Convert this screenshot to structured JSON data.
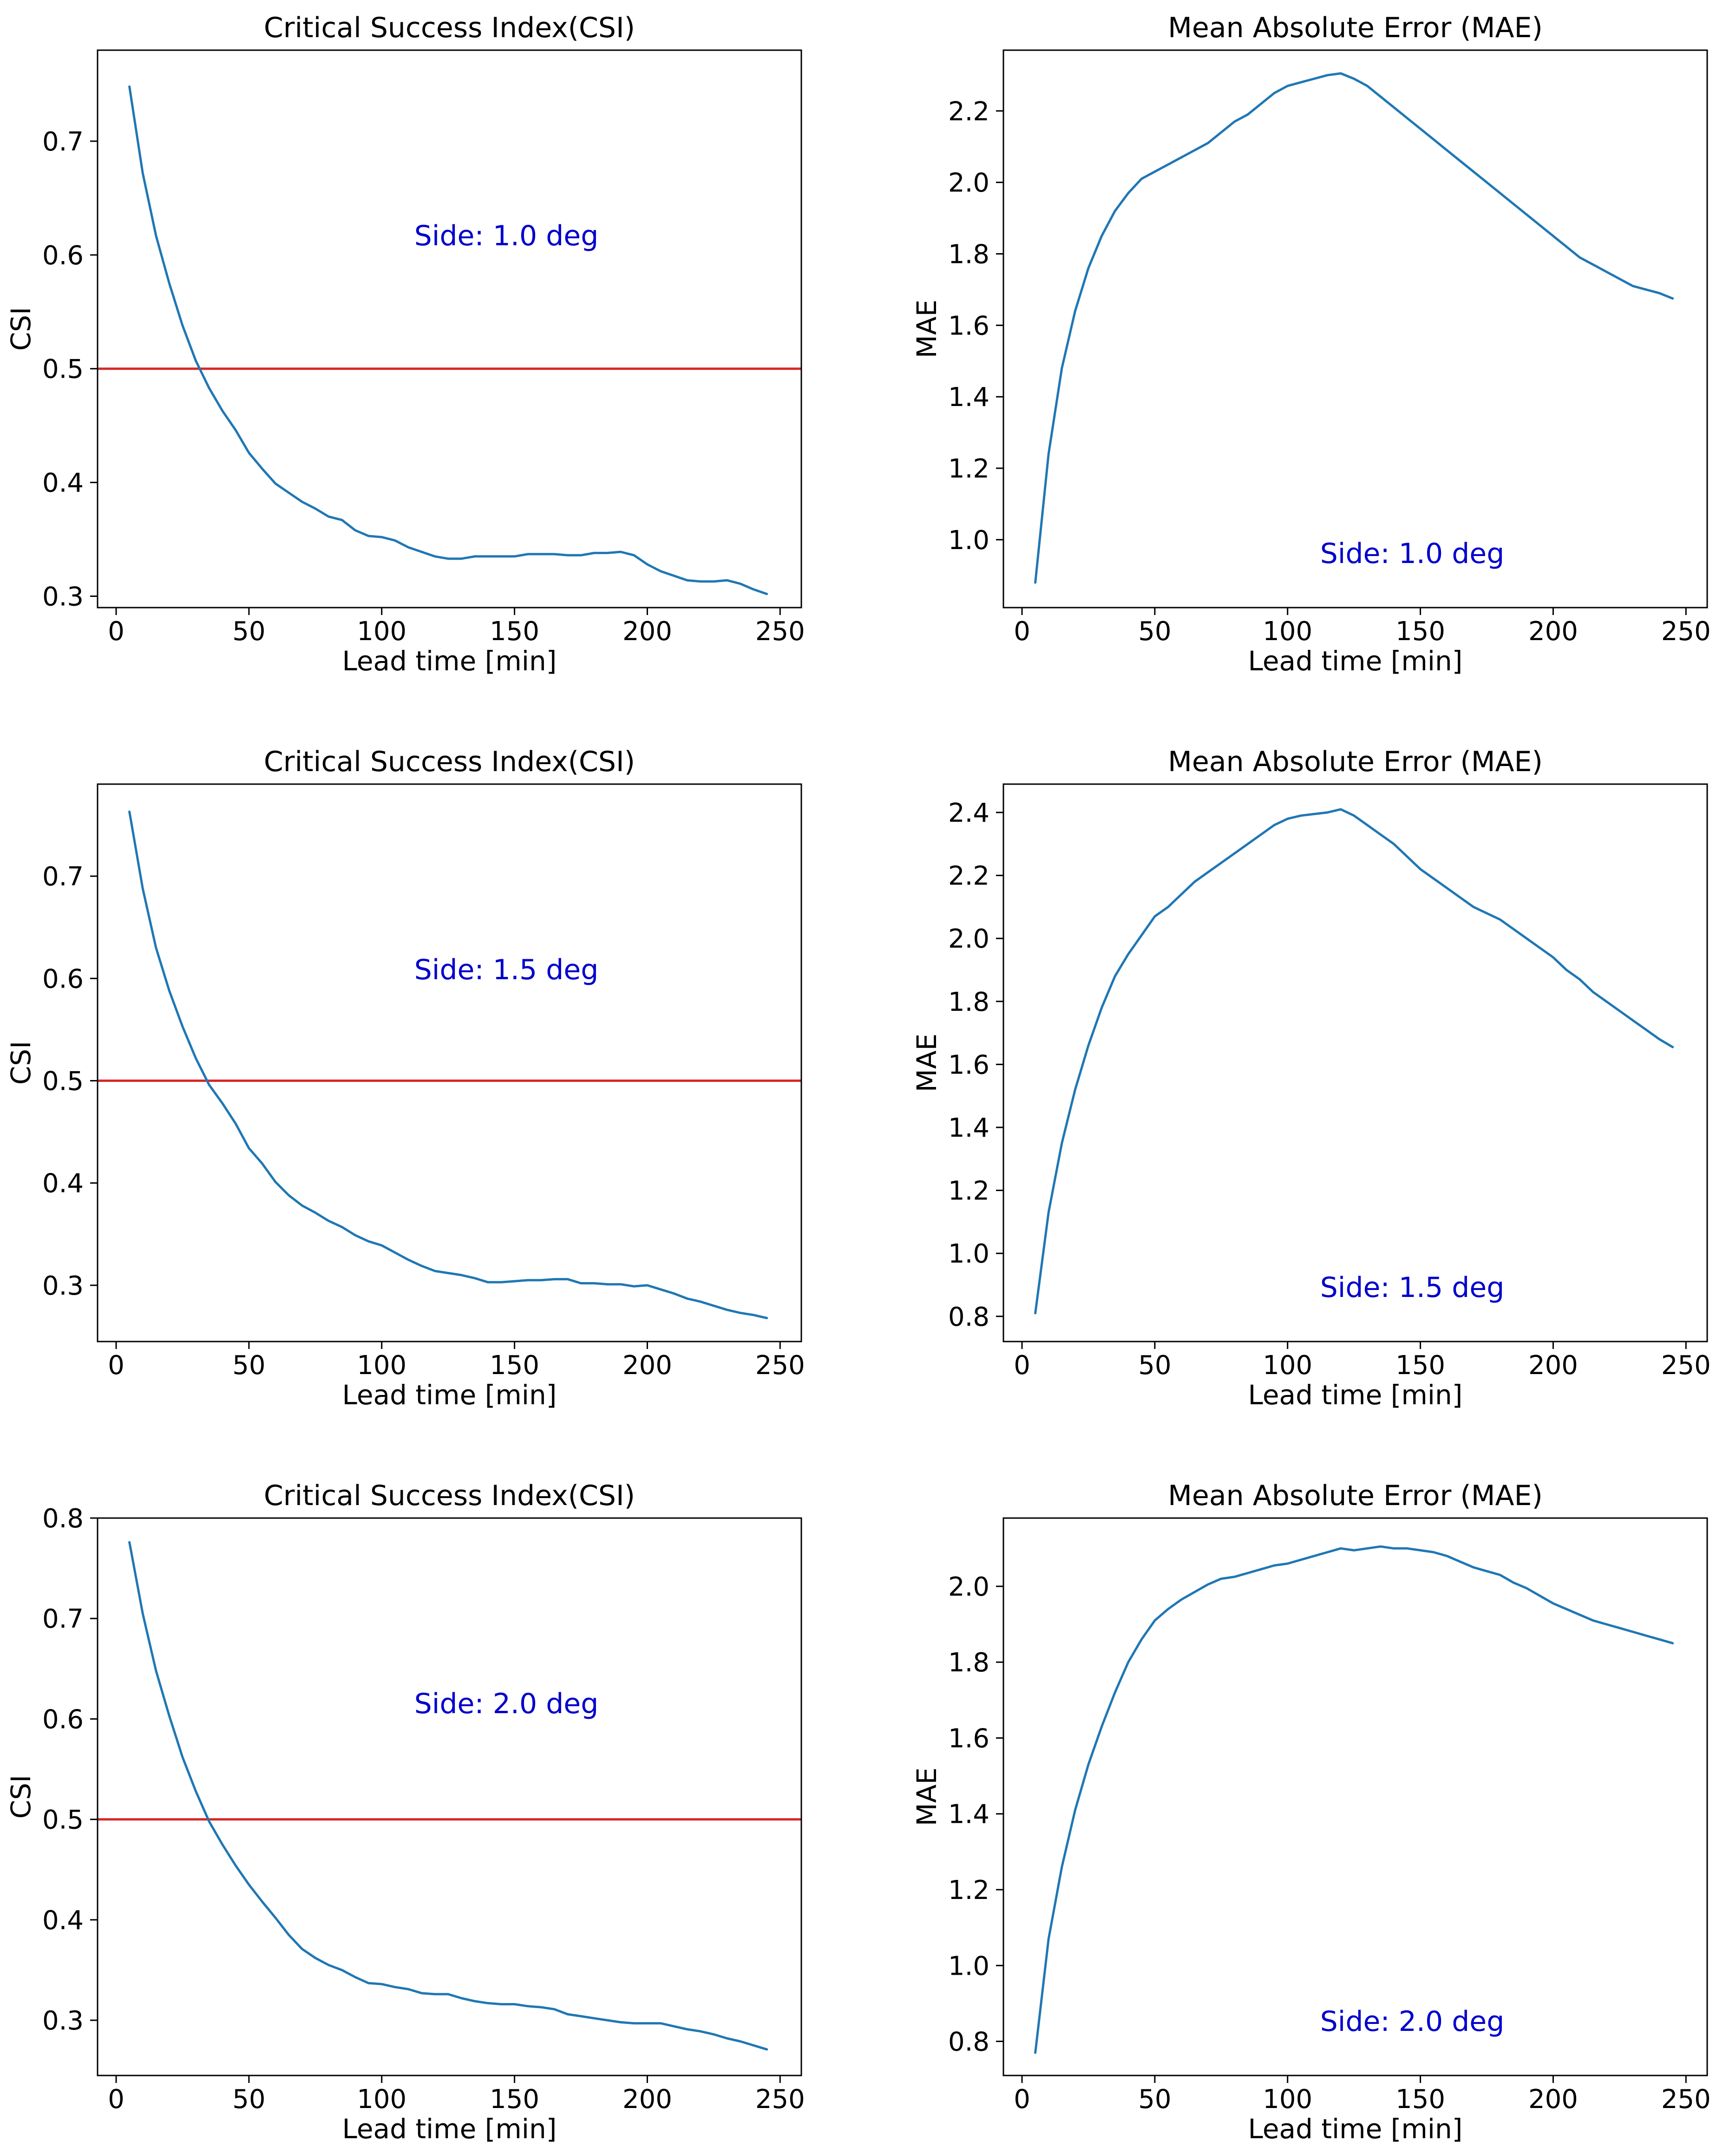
{
  "colors": {
    "series": "#1f77b4",
    "threshold": "#d62728",
    "annotation": "#0000cc"
  },
  "chart_data": [
    {
      "id": "csi-1",
      "type": "line",
      "title": "Critical Success Index(CSI)",
      "xlabel": "Lead time [min]",
      "ylabel": "CSI",
      "annotation": "Side: 1.0 deg",
      "xlim": [
        -7,
        258
      ],
      "ylim": [
        0.29,
        0.78
      ],
      "xticks": [
        0,
        50,
        100,
        150,
        200,
        250
      ],
      "xtick_labels": [
        "0",
        "50",
        "100",
        "150",
        "200",
        "250"
      ],
      "yticks": [
        0.3,
        0.4,
        0.5,
        0.6,
        0.7
      ],
      "ytick_labels": [
        "0.3",
        "0.4",
        "0.5",
        "0.6",
        "0.7"
      ],
      "threshold": 0.5,
      "x": [
        5,
        10,
        15,
        20,
        25,
        30,
        35,
        40,
        45,
        50,
        55,
        60,
        65,
        70,
        75,
        80,
        85,
        90,
        95,
        100,
        105,
        110,
        115,
        120,
        125,
        130,
        135,
        140,
        145,
        150,
        155,
        160,
        165,
        170,
        175,
        180,
        185,
        190,
        195,
        200,
        205,
        210,
        215,
        220,
        225,
        230,
        235,
        240,
        245
      ],
      "y": [
        0.748,
        0.672,
        0.617,
        0.575,
        0.538,
        0.507,
        0.483,
        0.463,
        0.446,
        0.426,
        0.412,
        0.399,
        0.391,
        0.383,
        0.377,
        0.37,
        0.367,
        0.358,
        0.353,
        0.352,
        0.349,
        0.343,
        0.339,
        0.335,
        0.333,
        0.333,
        0.335,
        0.335,
        0.335,
        0.335,
        0.337,
        0.337,
        0.337,
        0.336,
        0.336,
        0.338,
        0.338,
        0.339,
        0.336,
        0.328,
        0.322,
        0.318,
        0.314,
        0.313,
        0.313,
        0.314,
        0.311,
        0.306,
        0.302
      ]
    },
    {
      "id": "mae-1",
      "type": "line",
      "title": "Mean Absolute Error (MAE)",
      "xlabel": "Lead time [min]",
      "ylabel": "MAE",
      "annotation": "Side: 1.0 deg",
      "xlim": [
        -7,
        258
      ],
      "ylim": [
        0.81,
        2.37
      ],
      "xticks": [
        0,
        50,
        100,
        150,
        200,
        250
      ],
      "xtick_labels": [
        "0",
        "50",
        "100",
        "150",
        "200",
        "250"
      ],
      "yticks": [
        1.0,
        1.2,
        1.4,
        1.6,
        1.8,
        2.0,
        2.2
      ],
      "ytick_labels": [
        "1.0",
        "1.2",
        "1.4",
        "1.6",
        "1.8",
        "2.0",
        "2.2"
      ],
      "x": [
        5,
        10,
        15,
        20,
        25,
        30,
        35,
        40,
        45,
        50,
        55,
        60,
        65,
        70,
        75,
        80,
        85,
        90,
        95,
        100,
        105,
        110,
        115,
        120,
        125,
        130,
        135,
        140,
        145,
        150,
        155,
        160,
        165,
        170,
        175,
        180,
        185,
        190,
        195,
        200,
        205,
        210,
        215,
        220,
        225,
        230,
        235,
        240,
        245
      ],
      "y": [
        0.88,
        1.24,
        1.48,
        1.64,
        1.76,
        1.85,
        1.92,
        1.97,
        2.01,
        2.03,
        2.05,
        2.07,
        2.09,
        2.11,
        2.14,
        2.17,
        2.19,
        2.22,
        2.25,
        2.27,
        2.28,
        2.29,
        2.3,
        2.305,
        2.29,
        2.27,
        2.24,
        2.21,
        2.18,
        2.15,
        2.12,
        2.09,
        2.06,
        2.03,
        2.0,
        1.97,
        1.94,
        1.91,
        1.88,
        1.85,
        1.82,
        1.79,
        1.77,
        1.75,
        1.73,
        1.71,
        1.7,
        1.69,
        1.675
      ]
    },
    {
      "id": "csi-15",
      "type": "line",
      "title": "Critical Success Index(CSI)",
      "xlabel": "Lead time [min]",
      "ylabel": "CSI",
      "annotation": "Side: 1.5 deg",
      "xlim": [
        -7,
        258
      ],
      "ylim": [
        0.245,
        0.79
      ],
      "xticks": [
        0,
        50,
        100,
        150,
        200,
        250
      ],
      "xtick_labels": [
        "0",
        "50",
        "100",
        "150",
        "200",
        "250"
      ],
      "yticks": [
        0.3,
        0.4,
        0.5,
        0.6,
        0.7
      ],
      "ytick_labels": [
        "0.3",
        "0.4",
        "0.5",
        "0.6",
        "0.7"
      ],
      "threshold": 0.5,
      "x": [
        5,
        10,
        15,
        20,
        25,
        30,
        35,
        40,
        45,
        50,
        55,
        60,
        65,
        70,
        75,
        80,
        85,
        90,
        95,
        100,
        105,
        110,
        115,
        120,
        125,
        130,
        135,
        140,
        145,
        150,
        155,
        160,
        165,
        170,
        175,
        180,
        185,
        190,
        195,
        200,
        205,
        210,
        215,
        220,
        225,
        230,
        235,
        240,
        245
      ],
      "y": [
        0.763,
        0.688,
        0.63,
        0.588,
        0.553,
        0.522,
        0.496,
        0.478,
        0.458,
        0.434,
        0.419,
        0.401,
        0.388,
        0.378,
        0.371,
        0.363,
        0.357,
        0.349,
        0.343,
        0.339,
        0.332,
        0.325,
        0.319,
        0.314,
        0.312,
        0.31,
        0.307,
        0.303,
        0.303,
        0.304,
        0.305,
        0.305,
        0.306,
        0.306,
        0.302,
        0.302,
        0.301,
        0.301,
        0.299,
        0.3,
        0.296,
        0.292,
        0.287,
        0.284,
        0.28,
        0.276,
        0.273,
        0.271,
        0.268
      ]
    },
    {
      "id": "mae-15",
      "type": "line",
      "title": "Mean Absolute Error (MAE)",
      "xlabel": "Lead time [min]",
      "ylabel": "MAE",
      "annotation": "Side: 1.5 deg",
      "xlim": [
        -7,
        258
      ],
      "ylim": [
        0.72,
        2.49
      ],
      "xticks": [
        0,
        50,
        100,
        150,
        200,
        250
      ],
      "xtick_labels": [
        "0",
        "50",
        "100",
        "150",
        "200",
        "250"
      ],
      "yticks": [
        0.8,
        1.0,
        1.2,
        1.4,
        1.6,
        1.8,
        2.0,
        2.2,
        2.4
      ],
      "ytick_labels": [
        "0.8",
        "1.0",
        "1.2",
        "1.4",
        "1.6",
        "1.8",
        "2.0",
        "2.2",
        "2.4"
      ],
      "x": [
        5,
        10,
        15,
        20,
        25,
        30,
        35,
        40,
        45,
        50,
        55,
        60,
        65,
        70,
        75,
        80,
        85,
        90,
        95,
        100,
        105,
        110,
        115,
        120,
        125,
        130,
        135,
        140,
        145,
        150,
        155,
        160,
        165,
        170,
        175,
        180,
        185,
        190,
        195,
        200,
        205,
        210,
        215,
        220,
        225,
        230,
        235,
        240,
        245
      ],
      "y": [
        0.81,
        1.13,
        1.35,
        1.52,
        1.66,
        1.78,
        1.88,
        1.95,
        2.01,
        2.07,
        2.1,
        2.14,
        2.18,
        2.21,
        2.24,
        2.27,
        2.3,
        2.33,
        2.36,
        2.38,
        2.39,
        2.395,
        2.4,
        2.41,
        2.39,
        2.36,
        2.33,
        2.3,
        2.26,
        2.22,
        2.19,
        2.16,
        2.13,
        2.1,
        2.08,
        2.06,
        2.03,
        2.0,
        1.97,
        1.94,
        1.9,
        1.87,
        1.83,
        1.8,
        1.77,
        1.74,
        1.71,
        1.68,
        1.655
      ]
    },
    {
      "id": "csi-2",
      "type": "line",
      "title": "Critical Success Index(CSI)",
      "xlabel": "Lead time [min]",
      "ylabel": "CSI",
      "annotation": "Side: 2.0 deg",
      "xlim": [
        -7,
        258
      ],
      "ylim": [
        0.245,
        0.8
      ],
      "xticks": [
        0,
        50,
        100,
        150,
        200,
        250
      ],
      "xtick_labels": [
        "0",
        "50",
        "100",
        "150",
        "200",
        "250"
      ],
      "yticks": [
        0.3,
        0.4,
        0.5,
        0.6,
        0.7,
        0.8
      ],
      "ytick_labels": [
        "0.3",
        "0.4",
        "0.5",
        "0.6",
        "0.7",
        "0.8"
      ],
      "threshold": 0.5,
      "x": [
        5,
        10,
        15,
        20,
        25,
        30,
        35,
        40,
        45,
        50,
        55,
        60,
        65,
        70,
        75,
        80,
        85,
        90,
        95,
        100,
        105,
        110,
        115,
        120,
        125,
        130,
        135,
        140,
        145,
        150,
        155,
        160,
        165,
        170,
        175,
        180,
        185,
        190,
        195,
        200,
        205,
        210,
        215,
        220,
        225,
        230,
        235,
        240,
        245
      ],
      "y": [
        0.776,
        0.705,
        0.648,
        0.603,
        0.562,
        0.528,
        0.498,
        0.475,
        0.454,
        0.435,
        0.418,
        0.402,
        0.385,
        0.371,
        0.362,
        0.355,
        0.35,
        0.343,
        0.337,
        0.336,
        0.333,
        0.331,
        0.327,
        0.326,
        0.326,
        0.322,
        0.319,
        0.317,
        0.316,
        0.316,
        0.314,
        0.313,
        0.311,
        0.306,
        0.304,
        0.302,
        0.3,
        0.298,
        0.297,
        0.297,
        0.297,
        0.294,
        0.291,
        0.289,
        0.286,
        0.282,
        0.279,
        0.275,
        0.271
      ]
    },
    {
      "id": "mae-2",
      "type": "line",
      "title": "Mean Absolute Error (MAE)",
      "xlabel": "Lead time [min]",
      "ylabel": "MAE",
      "annotation": "Side: 2.0 deg",
      "xlim": [
        -7,
        258
      ],
      "ylim": [
        0.71,
        2.18
      ],
      "xticks": [
        0,
        50,
        100,
        150,
        200,
        250
      ],
      "xtick_labels": [
        "0",
        "50",
        "100",
        "150",
        "200",
        "250"
      ],
      "yticks": [
        0.8,
        1.0,
        1.2,
        1.4,
        1.6,
        1.8,
        2.0
      ],
      "ytick_labels": [
        "0.8",
        "1.0",
        "1.2",
        "1.4",
        "1.6",
        "1.8",
        "2.0"
      ],
      "x": [
        5,
        10,
        15,
        20,
        25,
        30,
        35,
        40,
        45,
        50,
        55,
        60,
        65,
        70,
        75,
        80,
        85,
        90,
        95,
        100,
        105,
        110,
        115,
        120,
        125,
        130,
        135,
        140,
        145,
        150,
        155,
        160,
        165,
        170,
        175,
        180,
        185,
        190,
        195,
        200,
        205,
        210,
        215,
        220,
        225,
        230,
        235,
        240,
        245
      ],
      "y": [
        0.77,
        1.07,
        1.26,
        1.41,
        1.53,
        1.63,
        1.72,
        1.8,
        1.86,
        1.91,
        1.94,
        1.965,
        1.985,
        2.005,
        2.02,
        2.025,
        2.035,
        2.045,
        2.055,
        2.06,
        2.07,
        2.08,
        2.09,
        2.1,
        2.095,
        2.1,
        2.105,
        2.1,
        2.1,
        2.095,
        2.09,
        2.08,
        2.065,
        2.05,
        2.04,
        2.03,
        2.01,
        1.995,
        1.975,
        1.955,
        1.94,
        1.925,
        1.91,
        1.9,
        1.89,
        1.88,
        1.87,
        1.86,
        1.85
      ]
    }
  ]
}
